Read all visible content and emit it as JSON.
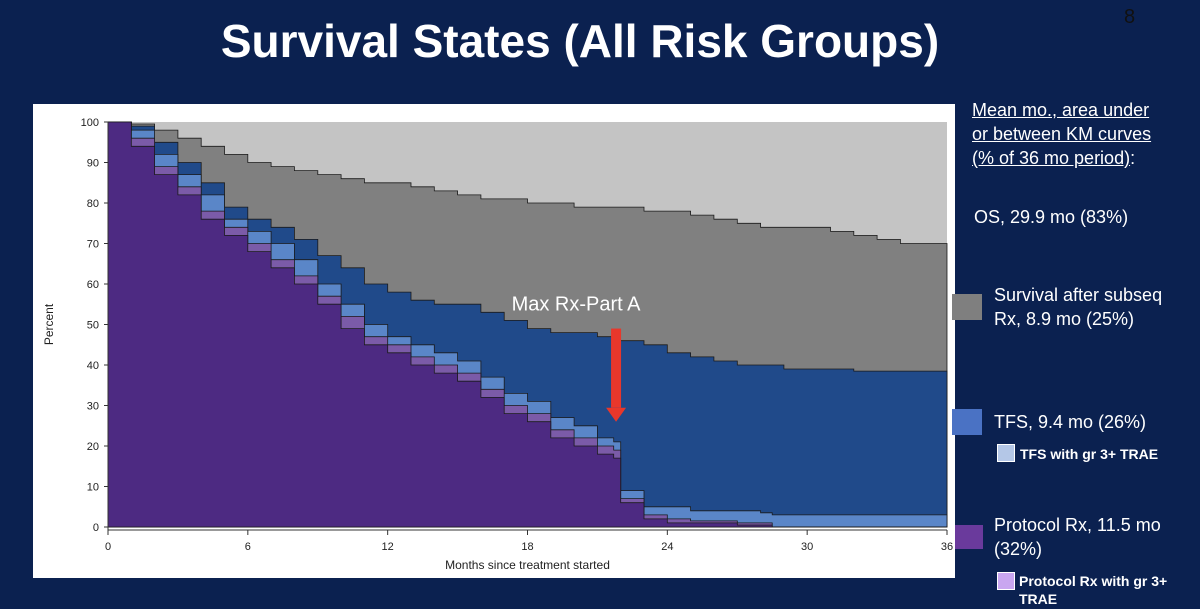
{
  "slide": {
    "title": "Survival States (All Risk Groups)",
    "page_number": "8"
  },
  "annotation": {
    "label": "Max Rx-Part A",
    "x_month": 21.8,
    "arrow_top_pct": 49,
    "arrow_bottom_pct": 26,
    "color": "#e8372b"
  },
  "legend": {
    "header_line1": "Mean mo., area under",
    "header_line2": "or between KM curves",
    "header_line3": "(% of 36 mo period)",
    "header_colon": ":",
    "os": "OS, 29.9 mo (83%)",
    "subseq_line1": "Survival after subseq",
    "subseq_line2": "Rx, 8.9 mo (25%)",
    "tfs": "TFS, 9.4 mo (26%)",
    "tfs_trae": "TFS with gr 3+ TRAE",
    "protocol_line1": "Protocol Rx, 11.5 mo",
    "protocol_line2": "(32%)",
    "protocol_trae_line1": "Protocol Rx with gr 3+",
    "protocol_trae_line2": "TRAE"
  },
  "colors": {
    "background": "#0b2150",
    "dead": "#c4c4c4",
    "subseq": "#808080",
    "tfs": "#204a8a",
    "tfs_trae": "#5a86c8",
    "protocol": "#4d2a82",
    "protocol_trae": "#7b5ba8",
    "legend_subseq": "#7f7f7f",
    "legend_tfs": "#4a72c4",
    "legend_tfs_trae": "#b4c7e7",
    "legend_protocol": "#6a3a9c",
    "legend_protocol_trae": "#c9a6f0"
  },
  "chart_data": {
    "type": "area",
    "title": "",
    "xlabel": "Months since treatment started",
    "ylabel": "Percent",
    "xlim": [
      0,
      36
    ],
    "ylim": [
      0,
      100
    ],
    "xticks": [
      "0",
      "6",
      "12",
      "18",
      "24",
      "30",
      "36"
    ],
    "yticks": [
      "0",
      "10",
      "20",
      "30",
      "40",
      "50",
      "60",
      "70",
      "80",
      "90",
      "100"
    ],
    "x": [
      0,
      1,
      2,
      3,
      4,
      5,
      6,
      7,
      8,
      9,
      10,
      11,
      12,
      13,
      14,
      15,
      16,
      17,
      18,
      19,
      20,
      21,
      21.7,
      22,
      23,
      24,
      25,
      26,
      27,
      28,
      28.5,
      29,
      30,
      31,
      32,
      33,
      34,
      35,
      35.5,
      36
    ],
    "series": [
      {
        "name": "Protocol Rx",
        "values": [
          100,
          94,
          87,
          82,
          76,
          72,
          68,
          64,
          60,
          55,
          49,
          45,
          43,
          40,
          38,
          36,
          32,
          28,
          26,
          22,
          20,
          18,
          17,
          6,
          2,
          1,
          1,
          1,
          0.5,
          0.5,
          0,
          0,
          0,
          0,
          0,
          0,
          0,
          0,
          0,
          0
        ]
      },
      {
        "name": "Protocol Rx with gr 3+ TRAE",
        "values": [
          100,
          96,
          89,
          84,
          78,
          74,
          70,
          66,
          62,
          57,
          52,
          47,
          45,
          42,
          40,
          38,
          34,
          30,
          28,
          24,
          22,
          20,
          19,
          7,
          3,
          2,
          1.5,
          1.5,
          1,
          1,
          0,
          0,
          0,
          0,
          0,
          0,
          0,
          0,
          0,
          0
        ]
      },
      {
        "name": "TFS with gr 3+ TRAE",
        "values": [
          100,
          98,
          92,
          87,
          82,
          76,
          73,
          70,
          66,
          60,
          55,
          50,
          47,
          45,
          43,
          41,
          37,
          33,
          31,
          27,
          25,
          22,
          21,
          9,
          5,
          5,
          4,
          4,
          4,
          3.5,
          3,
          3,
          3,
          3,
          3,
          3,
          3,
          3,
          3,
          3
        ]
      },
      {
        "name": "TFS",
        "values": [
          100,
          99,
          95,
          90,
          85,
          79,
          76,
          74,
          71,
          67,
          64,
          60,
          58,
          56,
          55,
          55,
          53,
          51,
          49,
          48,
          48,
          47,
          46,
          46,
          45,
          43,
          42,
          41,
          40,
          40,
          40,
          39,
          39,
          39,
          38.5,
          38.5,
          38.5,
          38.5,
          38.5,
          38.5
        ]
      },
      {
        "name": "OS",
        "values": [
          100,
          99.5,
          98,
          96,
          94,
          92,
          90,
          89,
          88,
          87,
          86,
          85,
          85,
          84,
          83,
          82,
          81,
          81,
          80,
          80,
          79,
          79,
          79,
          79,
          78,
          78,
          77,
          76,
          75,
          74,
          74,
          74,
          74,
          73,
          72,
          71,
          70,
          70,
          70,
          68
        ]
      }
    ]
  }
}
